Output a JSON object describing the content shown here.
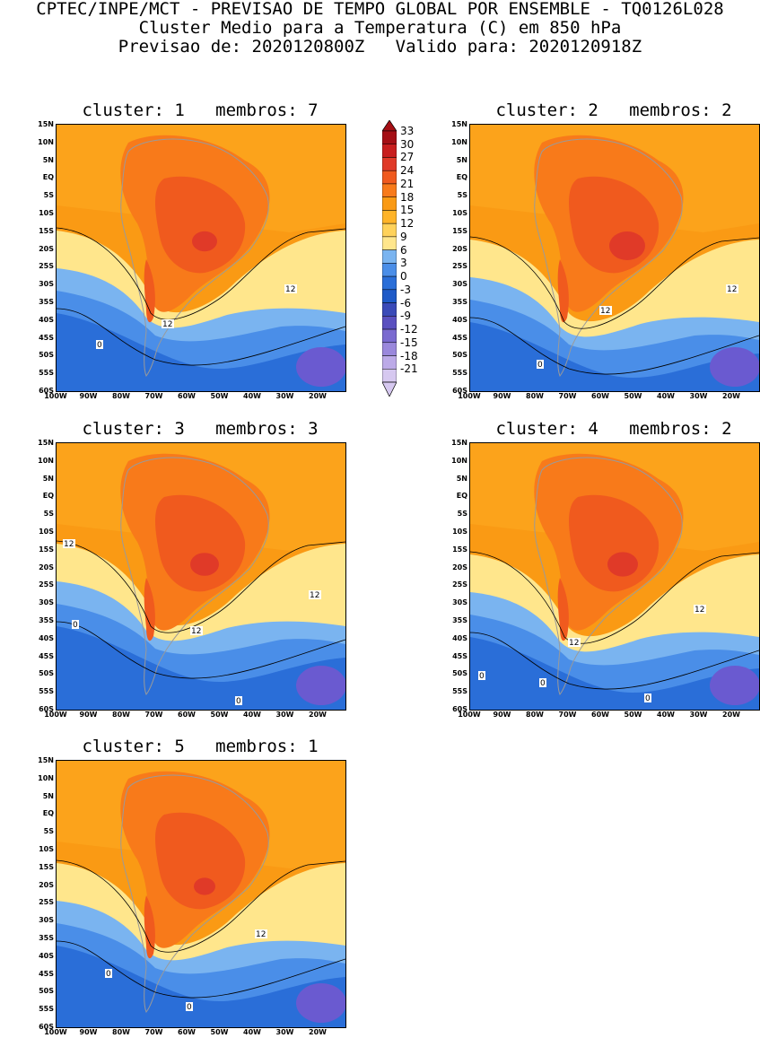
{
  "header": {
    "line1": "CPTEC/INPE/MCT - PREVISAO DE TEMPO GLOBAL POR ENSEMBLE - TQ0126L028",
    "line2": "Cluster Medio para a Temperatura (C) em 850 hPa",
    "line3": "Previsao de: 2020120800Z   Valido para: 2020120918Z"
  },
  "axes": {
    "lat_labels": [
      "15N",
      "10N",
      "5N",
      "EQ",
      "5S",
      "10S",
      "15S",
      "20S",
      "25S",
      "30S",
      "35S",
      "40S",
      "45S",
      "50S",
      "55S",
      "60S"
    ],
    "lon_labels": [
      "100W",
      "90W",
      "80W",
      "70W",
      "60W",
      "50W",
      "40W",
      "30W",
      "20W"
    ]
  },
  "colorbar": {
    "labels": [
      "33",
      "30",
      "27",
      "24",
      "21",
      "18",
      "15",
      "12",
      "9",
      "6",
      "3",
      "0",
      "-3",
      "-6",
      "-9",
      "-12",
      "-15",
      "-18",
      "-21"
    ],
    "colors": [
      "#a50f15",
      "#c81e1e",
      "#e03a28",
      "#f05a1e",
      "#f87a1a",
      "#fa9a14",
      "#ffb428",
      "#ffd25a",
      "#ffe68c",
      "#7ab4f0",
      "#4a8ee8",
      "#2a6ed8",
      "#1e5ac8",
      "#3a4ab8",
      "#5a50c0",
      "#7a6ad0",
      "#9a88dc",
      "#bcaae8",
      "#d6c8f0"
    ]
  },
  "panels": [
    {
      "title": "cluster: 1   membros: 7",
      "contour_labels": [
        "12",
        "12",
        "0"
      ]
    },
    {
      "title": "cluster: 2   membros: 2",
      "contour_labels": [
        "12",
        "12",
        "0"
      ]
    },
    {
      "title": "cluster: 3   membros: 3",
      "contour_labels": [
        "12",
        "12",
        "12",
        "0",
        "0"
      ]
    },
    {
      "title": "cluster: 4   membros: 2",
      "contour_labels": [
        "12",
        "12",
        "0",
        "0",
        "0"
      ]
    },
    {
      "title": "cluster: 5   membros: 1",
      "contour_labels": [
        "12",
        "0",
        "0"
      ]
    }
  ]
}
